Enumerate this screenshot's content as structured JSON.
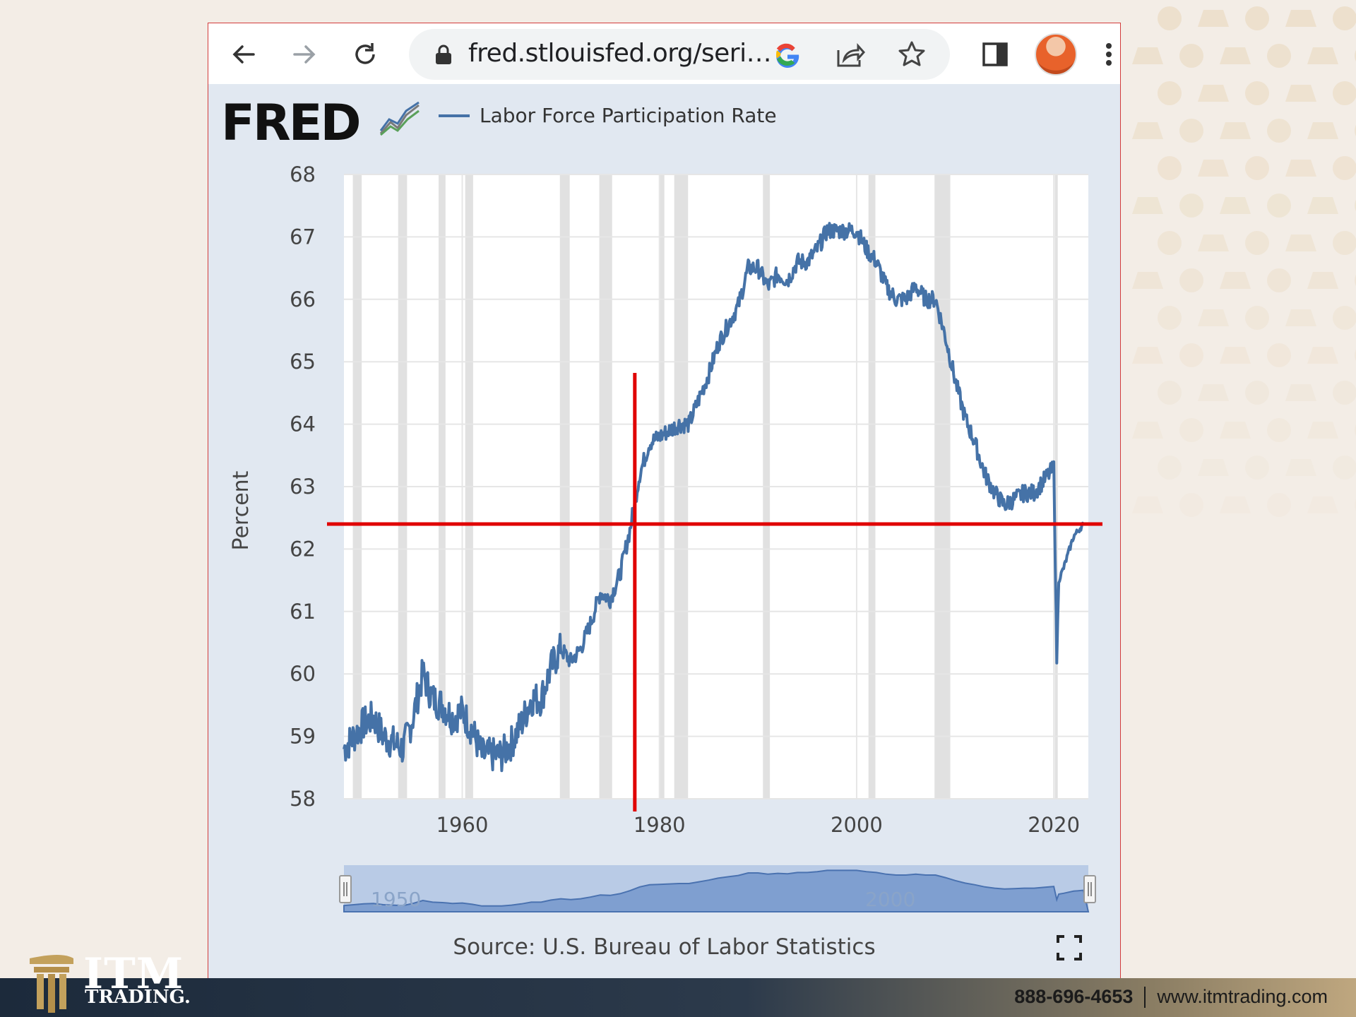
{
  "browser": {
    "url": "fred.stlouisfed.org/seri…",
    "icons": [
      "back-arrow-icon",
      "forward-arrow-icon",
      "reload-icon",
      "lock-icon",
      "google-icon",
      "share-icon",
      "star-icon",
      "side-panel-icon",
      "avatar",
      "menu-dots-icon"
    ]
  },
  "fred": {
    "logo": "FRED",
    "legend_label": "Labor Force Participation Rate",
    "source": "Source: U.S. Bureau of Labor Statistics",
    "navigator_labels": [
      "1950",
      "2000"
    ]
  },
  "chart_data": {
    "type": "line",
    "title": "",
    "ylabel": "Percent",
    "xlabel": "",
    "xlim": [
      1948,
      2023.5
    ],
    "ylim": [
      58,
      68
    ],
    "x_ticks": [
      "1960",
      "1980",
      "2000",
      "2020"
    ],
    "y_ticks": [
      "58",
      "59",
      "60",
      "61",
      "62",
      "63",
      "64",
      "65",
      "66",
      "67",
      "68"
    ],
    "series": [
      {
        "name": "Labor Force Participation Rate",
        "color": "#4572a7",
        "x": [
          1948.0,
          1949.0,
          1950.0,
          1951.0,
          1952.0,
          1953.0,
          1954.0,
          1955.0,
          1956.0,
          1957.0,
          1958.0,
          1959.0,
          1960.0,
          1961.0,
          1962.0,
          1963.0,
          1964.0,
          1965.0,
          1966.0,
          1967.0,
          1968.0,
          1969.0,
          1970.0,
          1971.0,
          1972.0,
          1973.0,
          1974.0,
          1975.0,
          1976.0,
          1977.0,
          1978.0,
          1979.0,
          1980.0,
          1981.0,
          1982.0,
          1983.0,
          1984.0,
          1985.0,
          1986.0,
          1987.0,
          1988.0,
          1989.0,
          1990.0,
          1991.0,
          1992.0,
          1993.0,
          1994.0,
          1995.0,
          1996.0,
          1997.0,
          1998.0,
          1999.0,
          2000.0,
          2001.0,
          2002.0,
          2003.0,
          2004.0,
          2005.0,
          2006.0,
          2007.0,
          2008.0,
          2009.0,
          2010.0,
          2011.0,
          2012.0,
          2013.0,
          2014.0,
          2015.0,
          2016.0,
          2017.0,
          2018.0,
          2019.0,
          2020.0,
          2020.3,
          2020.5,
          2021.0,
          2022.0,
          2023.0
        ],
        "values": [
          58.8,
          59.0,
          59.2,
          59.3,
          59.0,
          58.9,
          58.8,
          59.3,
          60.0,
          59.6,
          59.5,
          59.3,
          59.4,
          59.1,
          58.7,
          58.7,
          58.7,
          58.9,
          59.2,
          59.6,
          59.6,
          60.1,
          60.4,
          60.2,
          60.4,
          60.8,
          61.3,
          61.2,
          61.6,
          62.3,
          63.2,
          63.7,
          63.8,
          63.9,
          64.0,
          64.0,
          64.4,
          64.8,
          65.3,
          65.6,
          65.9,
          66.5,
          66.5,
          66.2,
          66.4,
          66.3,
          66.6,
          66.6,
          66.8,
          67.1,
          67.1,
          67.1,
          67.1,
          66.8,
          66.6,
          66.2,
          66.0,
          66.0,
          66.2,
          66.0,
          66.0,
          65.4,
          64.7,
          64.1,
          63.7,
          63.2,
          62.9,
          62.7,
          62.8,
          62.9,
          62.9,
          63.1,
          63.3,
          60.2,
          61.5,
          61.7,
          62.2,
          62.4
        ]
      }
    ],
    "recessions": [
      [
        1948.9,
        1949.8
      ],
      [
        1953.5,
        1954.4
      ],
      [
        1957.6,
        1958.3
      ],
      [
        1960.3,
        1961.1
      ],
      [
        1969.9,
        1970.9
      ],
      [
        1973.9,
        1975.2
      ],
      [
        1980.0,
        1980.5
      ],
      [
        1981.5,
        1982.9
      ],
      [
        1990.5,
        1991.2
      ],
      [
        2001.2,
        2001.9
      ],
      [
        2007.9,
        2009.5
      ],
      [
        2020.1,
        2020.4
      ]
    ],
    "annotations": {
      "hline_value": 62.4,
      "vline_x": 1977.5,
      "color": "#e00000"
    }
  },
  "footer": {
    "brand_word": "ITM",
    "brand_sub": "TRADING.",
    "phone": "888-696-4653",
    "website": "www.itmtrading.com"
  }
}
